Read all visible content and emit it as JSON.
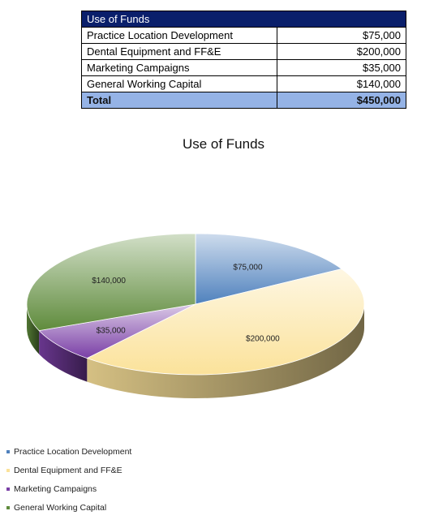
{
  "table": {
    "title": "Use of Funds",
    "rows": [
      {
        "label": "Practice Location Development",
        "amount": "$75,000"
      },
      {
        "label": "Dental Equipment and FF&E",
        "amount": "$200,000"
      },
      {
        "label": "Marketing Campaigns",
        "amount": "$35,000"
      },
      {
        "label": "General Working Capital",
        "amount": "$140,000"
      }
    ],
    "total_label": "Total",
    "total_amount": "$450,000"
  },
  "chart_data": {
    "type": "pie",
    "title": "Use of Funds",
    "categories": [
      "Practice Location Development",
      "Dental Equipment and FF&E",
      "Marketing Campaigns",
      "General Working Capital"
    ],
    "values": [
      75000,
      200000,
      35000,
      140000
    ],
    "data_labels": [
      "$75,000",
      "$200,000",
      "$35,000",
      "$140,000"
    ],
    "colors": [
      "#4f81bd",
      "#fbe29a",
      "#7a3fa6",
      "#5f8b3c"
    ],
    "legend_position": "bottom-left",
    "style": "3d"
  }
}
